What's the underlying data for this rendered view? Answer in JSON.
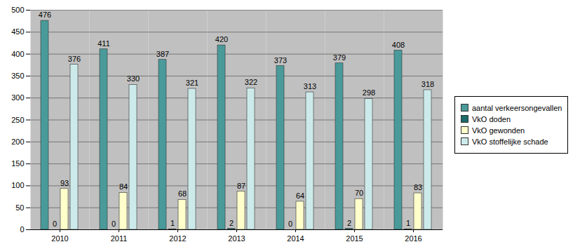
{
  "chart_data": {
    "type": "bar",
    "categories": [
      "2010",
      "2011",
      "2012",
      "2013",
      "2014",
      "2015",
      "2016"
    ],
    "series": [
      {
        "name": "aantal verkeersongevallen",
        "color": "#4a9a9a",
        "values": [
          476,
          411,
          387,
          420,
          373,
          379,
          408
        ]
      },
      {
        "name": "VkO doden",
        "color": "#1d6b6b",
        "values": [
          0,
          0,
          1,
          2,
          0,
          2,
          1
        ]
      },
      {
        "name": "VkO gewonden",
        "color": "#ffffcc",
        "values": [
          93,
          84,
          68,
          87,
          64,
          70,
          83
        ]
      },
      {
        "name": "VkO stoffelijke schade",
        "color": "#cdeaea",
        "values": [
          376,
          330,
          321,
          322,
          313,
          298,
          318
        ]
      }
    ],
    "ylim": [
      0,
      500
    ],
    "yticks": [
      0,
      50,
      100,
      150,
      200,
      250,
      300,
      350,
      400,
      450,
      500
    ],
    "grid": true,
    "legend": "right",
    "data_labels": true
  }
}
